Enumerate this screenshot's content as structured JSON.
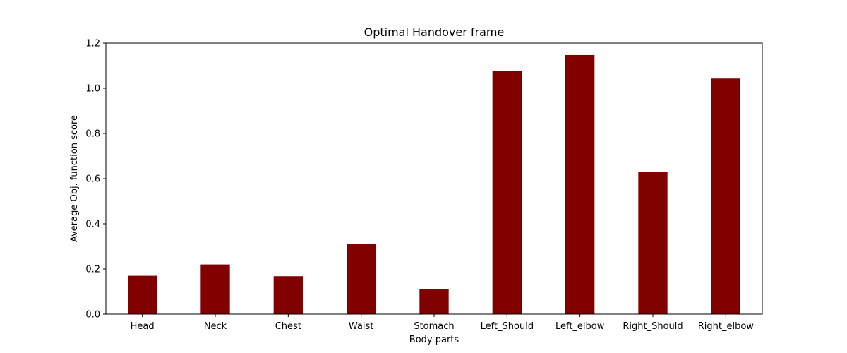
{
  "chart_data": {
    "type": "bar",
    "title": "Optimal Handover frame",
    "xlabel": "Body parts",
    "ylabel": "Average Obj. function score",
    "categories": [
      "Head",
      "Neck",
      "Chest",
      "Waist",
      "Stomach",
      "Left_Should",
      "Left_elbow",
      "Right_Should",
      "Right_elbow"
    ],
    "values": [
      0.17,
      0.22,
      0.168,
      0.31,
      0.112,
      1.075,
      1.147,
      0.63,
      1.043
    ],
    "ylim": [
      0,
      1.2
    ],
    "yticks": [
      "0.0",
      "0.2",
      "0.4",
      "0.6",
      "0.8",
      "1.0",
      "1.2"
    ],
    "bar_color": "#800000",
    "grid": false,
    "legend": "none"
  }
}
